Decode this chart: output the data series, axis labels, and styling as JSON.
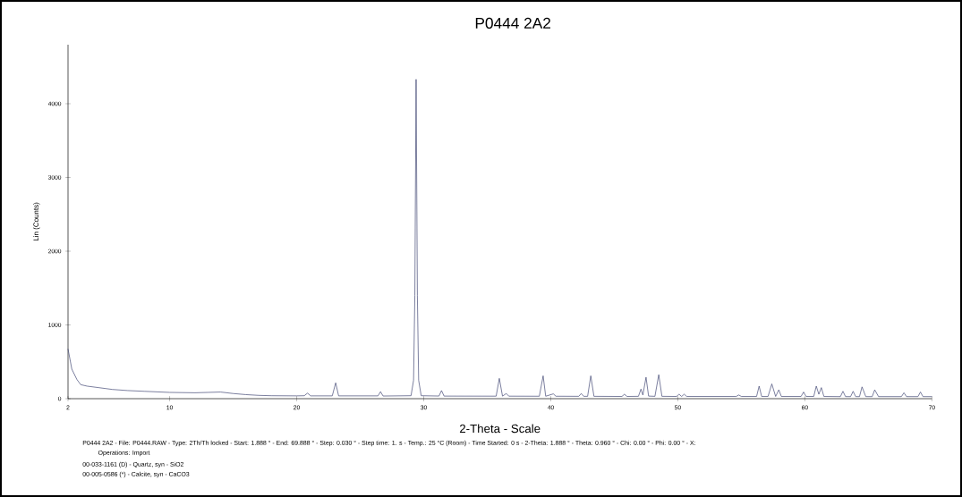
{
  "chart_data": {
    "type": "line",
    "title": "P0444 2A2",
    "xlabel": "2-Theta - Scale",
    "ylabel": "Lin (Counts)",
    "xlim": [
      2,
      70
    ],
    "ylim": [
      0,
      4800
    ],
    "xticks": [
      2,
      10,
      20,
      30,
      40,
      50,
      60,
      70
    ],
    "yticks": [
      0,
      1000,
      2000,
      3000,
      4000
    ],
    "series": [
      {
        "color": "#3a3f6e",
        "x": [
          2.0,
          2.3,
          2.7,
          3.0,
          3.5,
          4.4,
          5.5,
          6.7,
          8,
          10,
          12,
          13,
          14,
          15,
          16,
          17,
          18,
          20,
          20.6,
          20.85,
          21.1,
          22.8,
          23.07,
          23.3,
          26.4,
          26.6,
          26.8,
          29.0,
          29.2,
          29.3,
          29.4,
          29.5,
          29.6,
          29.8,
          31.2,
          31.4,
          31.6,
          35.7,
          35.95,
          36.2,
          36.5,
          36.7,
          39.1,
          39.4,
          39.6,
          40.2,
          40.4,
          42.2,
          42.4,
          42.6,
          42.9,
          43.15,
          43.4,
          45.6,
          45.8,
          46.0,
          46.9,
          47.1,
          47.25,
          47.5,
          47.7,
          48.2,
          48.5,
          48.75,
          49.9,
          50.1,
          50.3,
          50.5,
          50.7,
          54.6,
          54.8,
          55.0,
          56.2,
          56.4,
          56.6,
          57.1,
          57.4,
          57.7,
          57.95,
          58.15,
          59.7,
          59.9,
          60.1,
          60.7,
          60.9,
          61.1,
          61.3,
          61.5,
          62.8,
          63.0,
          63.2,
          63.6,
          63.8,
          64.0,
          64.3,
          64.5,
          64.8,
          65.3,
          65.5,
          65.8,
          67.6,
          67.8,
          68.0,
          68.9,
          69.1,
          69.3,
          70
        ],
        "values": [
          675,
          400,
          260,
          190,
          170,
          150,
          125,
          110,
          100,
          85,
          80,
          85,
          90,
          70,
          55,
          45,
          40,
          38,
          40,
          75,
          38,
          38,
          215,
          38,
          38,
          95,
          36,
          40,
          250,
          1400,
          4330,
          1400,
          250,
          40,
          36,
          110,
          35,
          34,
          275,
          35,
          70,
          34,
          33,
          310,
          33,
          65,
          33,
          32,
          70,
          32,
          32,
          310,
          32,
          30,
          60,
          30,
          32,
          130,
          50,
          290,
          35,
          32,
          325,
          32,
          30,
          60,
          30,
          60,
          30,
          30,
          50,
          30,
          30,
          170,
          30,
          30,
          200,
          30,
          120,
          30,
          30,
          90,
          30,
          30,
          170,
          60,
          150,
          30,
          28,
          100,
          28,
          28,
          100,
          28,
          28,
          160,
          28,
          28,
          120,
          28,
          28,
          80,
          28,
          28,
          90,
          28,
          28
        ]
      }
    ],
    "annotations": [
      "P0444 2A2 - File: P0444.RAW - Type: 2Th/Th locked - Start: 1.888 ° - End: 69.888 ° - Step: 0.030 ° - Step time: 1. s - Temp.: 25 °C (Room) - Time Started: 0 s - 2-Theta: 1.888 ° - Theta: 0.960 ° - Chi: 0.00 ° - Phi: 0.00 ° - X:",
      "Operations: Import",
      "00-033-1161 (D) - Quartz, syn - SiO2",
      "00-005-0586 (*) - Calcite, syn - CaCO3"
    ]
  }
}
